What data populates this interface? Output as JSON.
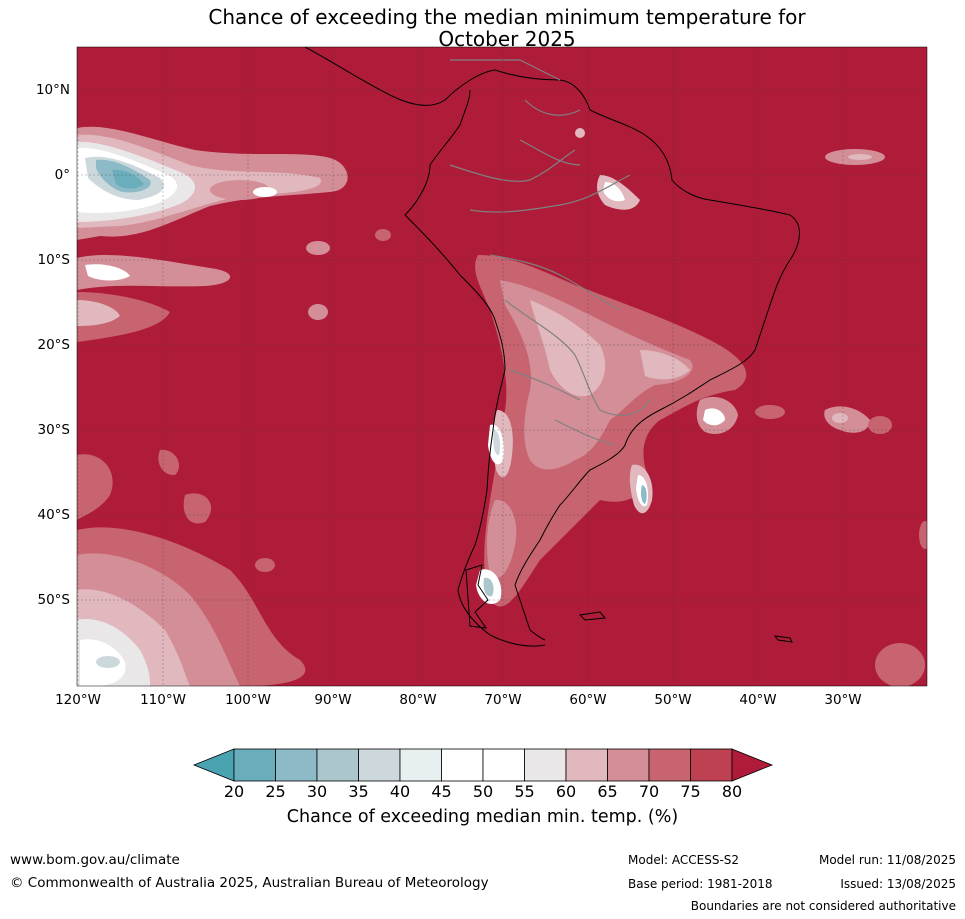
{
  "title": {
    "line1": "Chance of exceeding the median minimum temperature for",
    "line2": "October 2025"
  },
  "map": {
    "region": "South America and surrounding oceans",
    "lat_labels": [
      "10°N",
      "0°",
      "10°S",
      "20°S",
      "30°S",
      "40°S",
      "50°S"
    ],
    "lon_labels": [
      "120°W",
      "110°W",
      "100°W",
      "90°W",
      "80°W",
      "70°W",
      "60°W",
      "50°W",
      "40°W",
      "30°W"
    ],
    "dominant_category": ">80",
    "colors": {
      "c20": "#4aa3b0",
      "c25": "#6aaebb",
      "c30": "#8cbac6",
      "c35": "#abc6cd",
      "c40": "#cdd8dc",
      "c45": "#e8eff1",
      "c50": "#ffffff",
      "c55": "#ffffff",
      "c60": "#e9e7e8",
      "c65": "#e0b8be",
      "c70": "#d38e97",
      "c75": "#c76470",
      "c80": "#be4151",
      "c80plus": "#ae1c3a"
    }
  },
  "colorbar": {
    "ticks": [
      "20",
      "25",
      "30",
      "35",
      "40",
      "45",
      "50",
      "55",
      "60",
      "65",
      "70",
      "75",
      "80"
    ],
    "label": "Chance of exceeding median min. temp. (%)"
  },
  "footer": {
    "website": "www.bom.gov.au/climate",
    "copyright": "© Commonwealth of Australia 2025, Australian Bureau of Meteorology",
    "model": "Model: ACCESS-S2",
    "base_period": "Base period: 1981-2018",
    "model_run": "Model run: 11/08/2025",
    "issued": "Issued: 13/08/2025",
    "disclaimer": "Boundaries are not considered authoritative"
  }
}
